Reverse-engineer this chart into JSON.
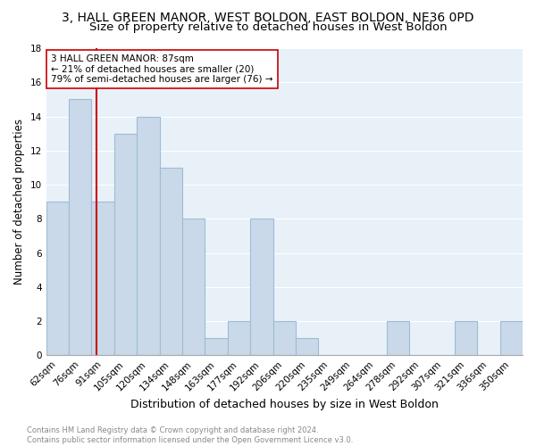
{
  "title": "3, HALL GREEN MANOR, WEST BOLDON, EAST BOLDON, NE36 0PD",
  "subtitle": "Size of property relative to detached houses in West Boldon",
  "xlabel": "Distribution of detached houses by size in West Boldon",
  "ylabel": "Number of detached properties",
  "categories": [
    "62sqm",
    "76sqm",
    "91sqm",
    "105sqm",
    "120sqm",
    "134sqm",
    "148sqm",
    "163sqm",
    "177sqm",
    "192sqm",
    "206sqm",
    "220sqm",
    "235sqm",
    "249sqm",
    "264sqm",
    "278sqm",
    "292sqm",
    "307sqm",
    "321sqm",
    "336sqm",
    "350sqm"
  ],
  "values": [
    9,
    15,
    9,
    13,
    14,
    11,
    8,
    1,
    2,
    8,
    2,
    1,
    0,
    0,
    0,
    2,
    0,
    0,
    2,
    0,
    2
  ],
  "bar_color": "#c9d9ea",
  "bar_edgecolor": "#a0bbd4",
  "bar_linewidth": 0.8,
  "vline_color": "#cc0000",
  "vline_x": 1.73,
  "annotation_text": "3 HALL GREEN MANOR: 87sqm\n← 21% of detached houses are smaller (20)\n79% of semi-detached houses are larger (76) →",
  "annotation_box_color": "#ffffff",
  "annotation_box_edgecolor": "#cc0000",
  "ylim": [
    0,
    18
  ],
  "yticks": [
    0,
    2,
    4,
    6,
    8,
    10,
    12,
    14,
    16,
    18
  ],
  "background_color": "#e8f0f8",
  "footer_text": "Contains HM Land Registry data © Crown copyright and database right 2024.\nContains public sector information licensed under the Open Government Licence v3.0.",
  "title_fontsize": 10,
  "subtitle_fontsize": 9.5,
  "xlabel_fontsize": 9,
  "ylabel_fontsize": 8.5,
  "tick_fontsize": 7.5,
  "annotation_fontsize": 7.5
}
